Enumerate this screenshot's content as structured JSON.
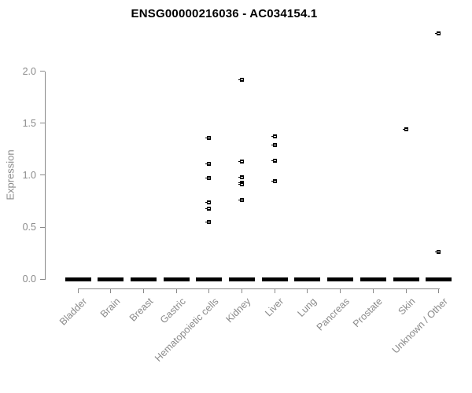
{
  "chart_data": {
    "type": "scatter",
    "subtype": "boxplot-with-outliers",
    "title": "ENSG00000216036 - AC034154.1",
    "xlabel": "",
    "ylabel": "Expression",
    "ylim": [
      0.0,
      2.36
    ],
    "yticks": [
      0.0,
      0.5,
      1.0,
      1.5,
      2.0
    ],
    "ytick_labels": [
      "0.0",
      "0.5",
      "1.0",
      "1.5",
      "2.0"
    ],
    "grid": false,
    "legend": "none",
    "categories": [
      "Bladder",
      "Brain",
      "Breast",
      "Gastric",
      "Hematopoietic cells",
      "Kidney",
      "Liver",
      "Lung",
      "Pancreas",
      "Prostate",
      "Skin",
      "Unknown / Other"
    ],
    "series": [
      {
        "category": "Bladder",
        "zero_bar_value": 0.0,
        "points": []
      },
      {
        "category": "Brain",
        "zero_bar_value": 0.0,
        "points": []
      },
      {
        "category": "Breast",
        "zero_bar_value": 0.0,
        "points": []
      },
      {
        "category": "Gastric",
        "zero_bar_value": 0.0,
        "points": []
      },
      {
        "category": "Hematopoietic cells",
        "zero_bar_value": 0.0,
        "points": [
          1.36,
          1.11,
          0.97,
          0.74,
          0.68,
          0.55
        ]
      },
      {
        "category": "Kidney",
        "zero_bar_value": 0.0,
        "points": [
          1.92,
          1.13,
          0.98,
          0.93,
          0.91,
          0.76
        ]
      },
      {
        "category": "Liver",
        "zero_bar_value": 0.0,
        "points": [
          1.37,
          1.29,
          1.14,
          0.94
        ]
      },
      {
        "category": "Lung",
        "zero_bar_value": 0.0,
        "points": []
      },
      {
        "category": "Pancreas",
        "zero_bar_value": 0.0,
        "points": []
      },
      {
        "category": "Prostate",
        "zero_bar_value": 0.0,
        "points": []
      },
      {
        "category": "Skin",
        "zero_bar_value": 0.0,
        "points": [
          1.44
        ]
      },
      {
        "category": "Unknown / Other",
        "zero_bar_value": 0.0,
        "points": [
          2.36,
          0.26
        ]
      }
    ],
    "colors": {
      "marker": "#000000",
      "zero_bar": "#000000",
      "axis": "#8a8a8a",
      "tick_text": "#8a8a8a",
      "title_text": "#000000",
      "background": "#ffffff"
    }
  }
}
